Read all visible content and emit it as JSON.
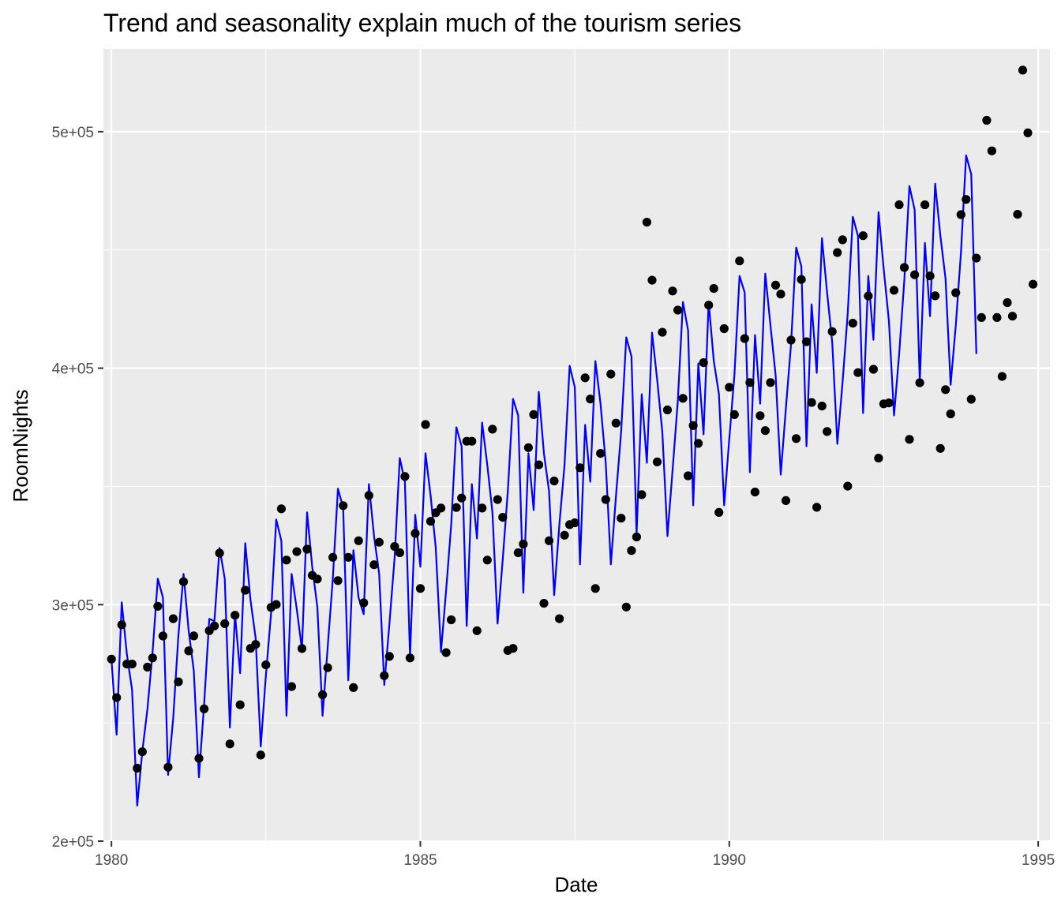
{
  "chart_data": {
    "type": "line",
    "title": "Trend and seasonality explain much of the tourism series",
    "xlabel": "Date",
    "ylabel": "RoomNights",
    "xlim": [
      1979.87,
      1995.19
    ],
    "ylim": [
      200000,
      535000
    ],
    "x_ticks": [
      1980,
      1985,
      1990,
      1995
    ],
    "x_tick_labels": [
      "1980",
      "1985",
      "1990",
      "1995"
    ],
    "y_ticks": [
      200000,
      300000,
      400000,
      500000
    ],
    "y_tick_labels": [
      "2e+05",
      "3e+05",
      "4e+05",
      "5e+05"
    ],
    "grid": true,
    "background": "#ebebeb",
    "grid_color": "#ffffff",
    "colors": {
      "points": "#000000",
      "fitted": "#0000ff"
    },
    "x_start": 1980.0,
    "x_step": 0.08333,
    "series": [
      {
        "kind": "points",
        "values": [
          276986,
          260699,
          291497,
          274858,
          274858,
          230836,
          237804,
          273565,
          277466,
          299314,
          286740,
          231305,
          294052,
          267352,
          309698,
          280450,
          286779,
          234988,
          255937,
          288986,
          290982,
          321788,
          291962,
          241112,
          295538,
          257658,
          306090,
          281519,
          283174,
          236392,
          274546,
          298837,
          300071,
          340549,
          318860,
          265360,
          322420,
          281446,
          323456,
          312394,
          310852,
          261889,
          273336,
          320020,
          310190,
          341879,
          320020,
          264943,
          327041,
          300767,
          346179,
          316896,
          326391,
          269968,
          278106,
          324585,
          321938,
          354188,
          277466,
          330139,
          306828,
          376163,
          335220,
          338858,
          340829,
          279723,
          293596,
          341067,
          345077,
          369110,
          369110,
          288986,
          340829,
          318860,
          374209,
          344431,
          336938,
          280615,
          281519,
          321938,
          325633,
          366391,
          380383,
          359119,
          300555,
          327041,
          352285,
          294052,
          329369,
          333846,
          334585,
          357885,
          395935,
          386949,
          306828,
          363976,
          344431,
          397490,
          376782,
          336554,
          298996,
          322884,
          328623,
          346509,
          461713,
          437217,
          360369,
          415190,
          382354,
          432637,
          424562,
          387266,
          354481,
          375758,
          368185,
          402346,
          426660,
          433698,
          339016,
          416727,
          391935,
          380383,
          445347,
          412496,
          393913,
          347616,
          379920,
          373590,
          393915,
          435094,
          431323,
          343996,
          411886,
          370220,
          437502,
          411191,
          385471,
          341158,
          383998,
          373195,
          415470,
          448893,
          454302,
          350108,
          419034,
          398140,
          456031,
          430525,
          399529,
          361971,
          384903,
          385306,
          432917,
          469117,
          442573,
          369894,
          439512,
          393819,
          469117,
          438994,
          430612,
          366075,
          390927,
          380670,
          431887,
          464929,
          471375,
          386849,
          446530,
          421426,
          504800,
          491874,
          421426,
          396490,
          427740,
          421993,
          465048,
          526021,
          499506,
          435489
        ]
      },
      {
        "kind": "line",
        "values": [
          276986,
          245000,
          301000,
          279000,
          264000,
          215000,
          238000,
          256000,
          280000,
          311000,
          303000,
          228000,
          252000,
          287000,
          313000,
          289000,
          272000,
          227000,
          258000,
          294000,
          293000,
          324000,
          311000,
          248000,
          296000,
          271000,
          326000,
          302000,
          286000,
          240000,
          270000,
          296000,
          336000,
          327000,
          253000,
          313000,
          298000,
          281000,
          339000,
          316000,
          299000,
          253000,
          282000,
          311000,
          349000,
          341000,
          268000,
          323000,
          303000,
          296000,
          351000,
          329000,
          313000,
          266000,
          292000,
          320000,
          362000,
          352000,
          278000,
          338000,
          316000,
          364000,
          346000,
          324000,
          280000,
          306000,
          334000,
          375000,
          367000,
          291000,
          351000,
          328000,
          377000,
          359000,
          339000,
          292000,
          319000,
          348000,
          387000,
          380000,
          305000,
          364000,
          340000,
          390000,
          364000,
          348000,
          304000,
          334000,
          359000,
          401000,
          392000,
          317000,
          376000,
          352000,
          403000,
          385000,
          360000,
          317000,
          346000,
          373000,
          413000,
          405000,
          330000,
          389000,
          360000,
          415000,
          395000,
          373000,
          329000,
          357000,
          386000,
          428000,
          416000,
          342000,
          402000,
          372000,
          428000,
          403000,
          389000,
          342000,
          370000,
          397000,
          439000,
          432000,
          356000,
          414000,
          385000,
          440000,
          418000,
          397000,
          355000,
          383000,
          410000,
          451000,
          443000,
          367000,
          427000,
          398000,
          455000,
          432000,
          411000,
          368000,
          394000,
          423000,
          464000,
          456000,
          381000,
          439000,
          412000,
          466000,
          442000,
          420000,
          380000,
          406000,
          437000,
          477000,
          467000,
          394000,
          453000,
          422000,
          478000,
          456000,
          438000,
          393000,
          418000,
          449000,
          490000,
          482000,
          406000
        ]
      }
    ]
  }
}
